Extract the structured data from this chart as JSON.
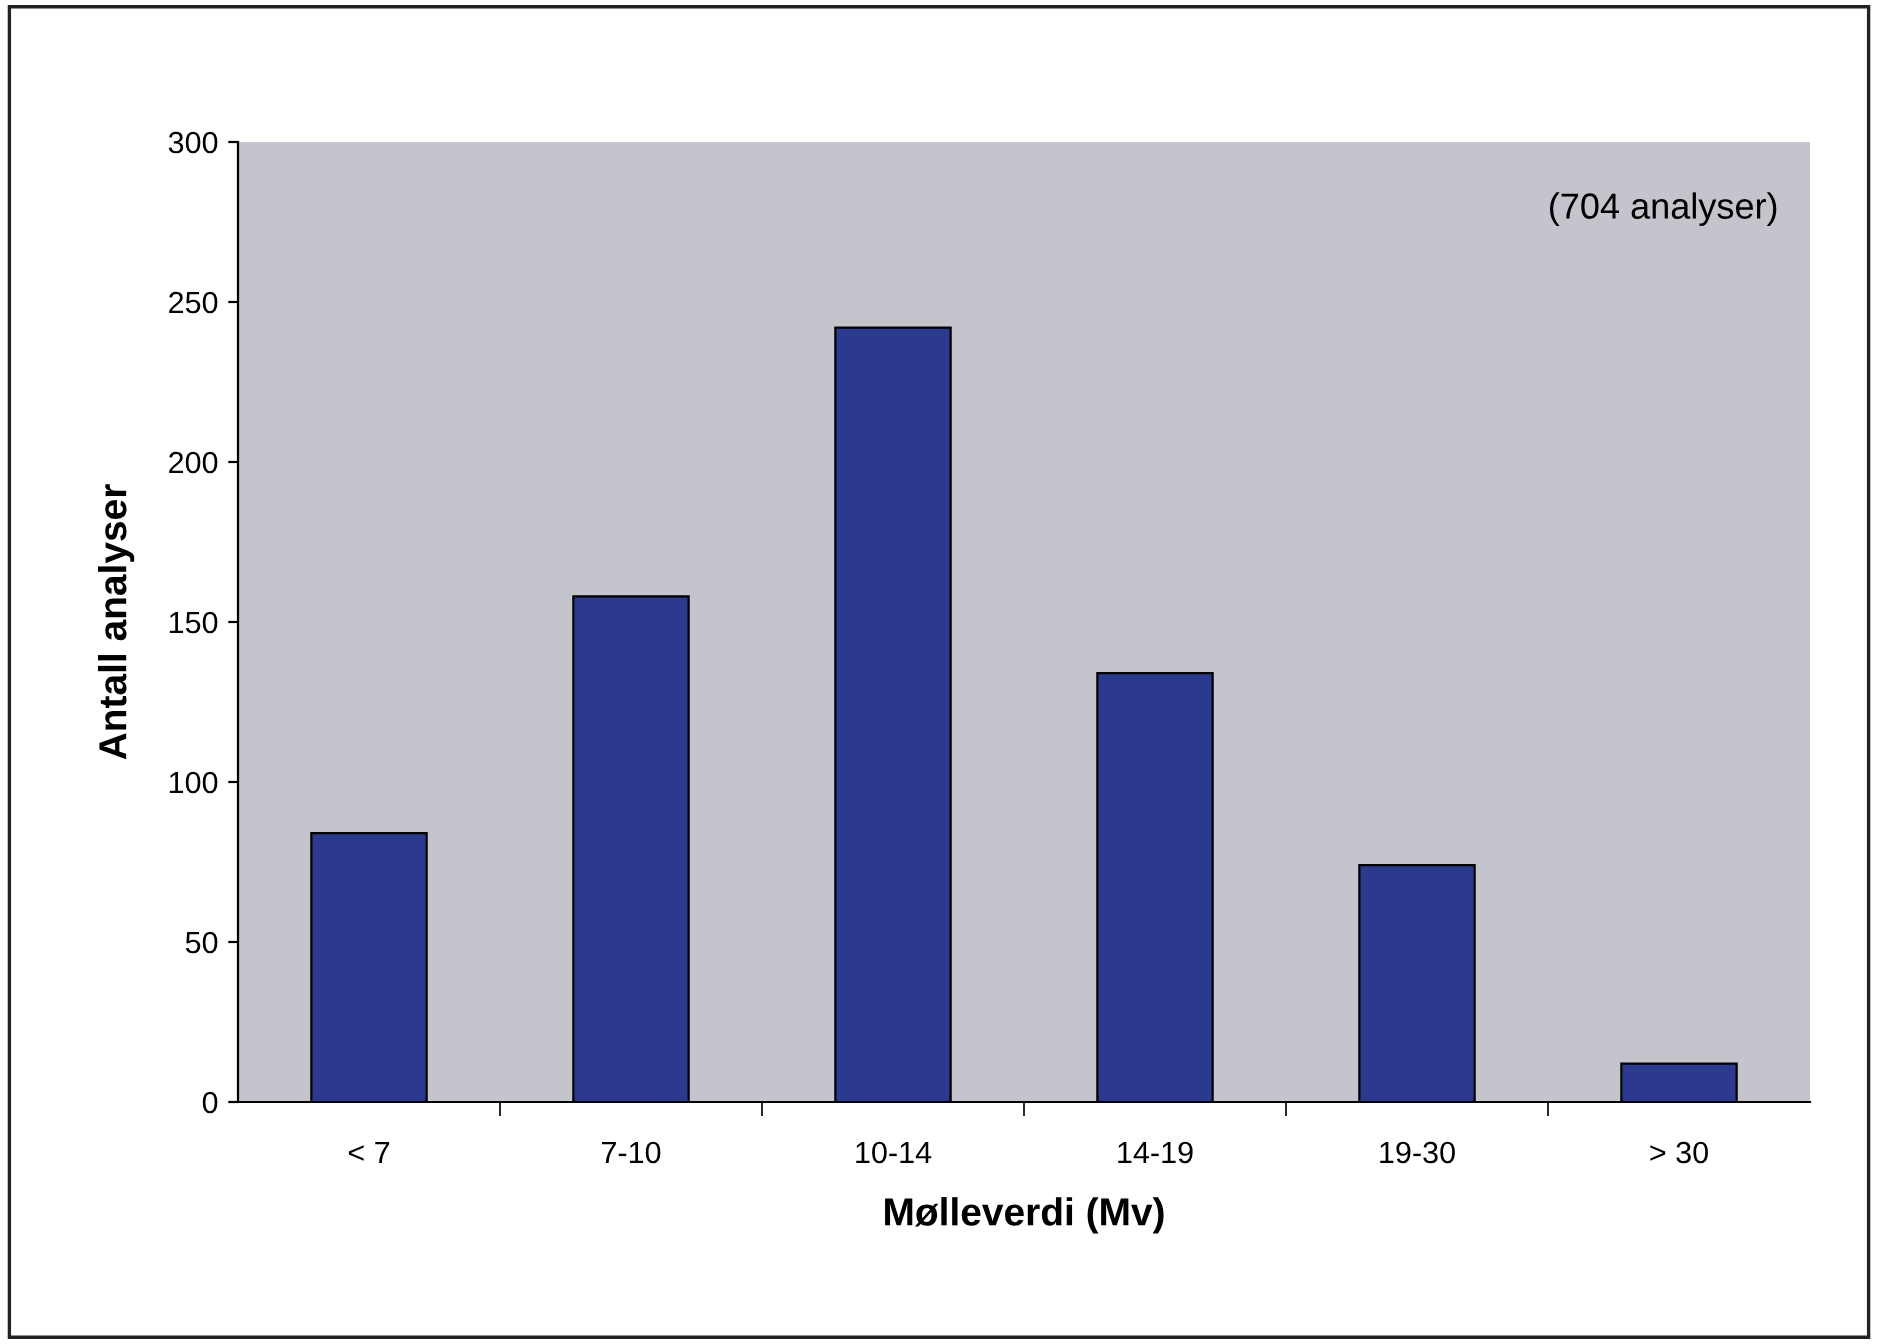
{
  "chart_data": {
    "type": "bar",
    "xlabel": "Mølleverdi (Mv)",
    "ylabel": "Antall analyser",
    "categories": [
      "< 7",
      "7-10",
      "10-14",
      "14-19",
      "19-30",
      "> 30"
    ],
    "values": [
      84,
      158,
      242,
      134,
      74,
      12
    ],
    "color": "#2b3a8f",
    "ylim": [
      0,
      300
    ],
    "yticks": [
      0,
      50,
      100,
      150,
      200,
      250,
      300
    ],
    "grid": false,
    "legend": false,
    "annotations": [
      "(704 analyser)"
    ]
  }
}
